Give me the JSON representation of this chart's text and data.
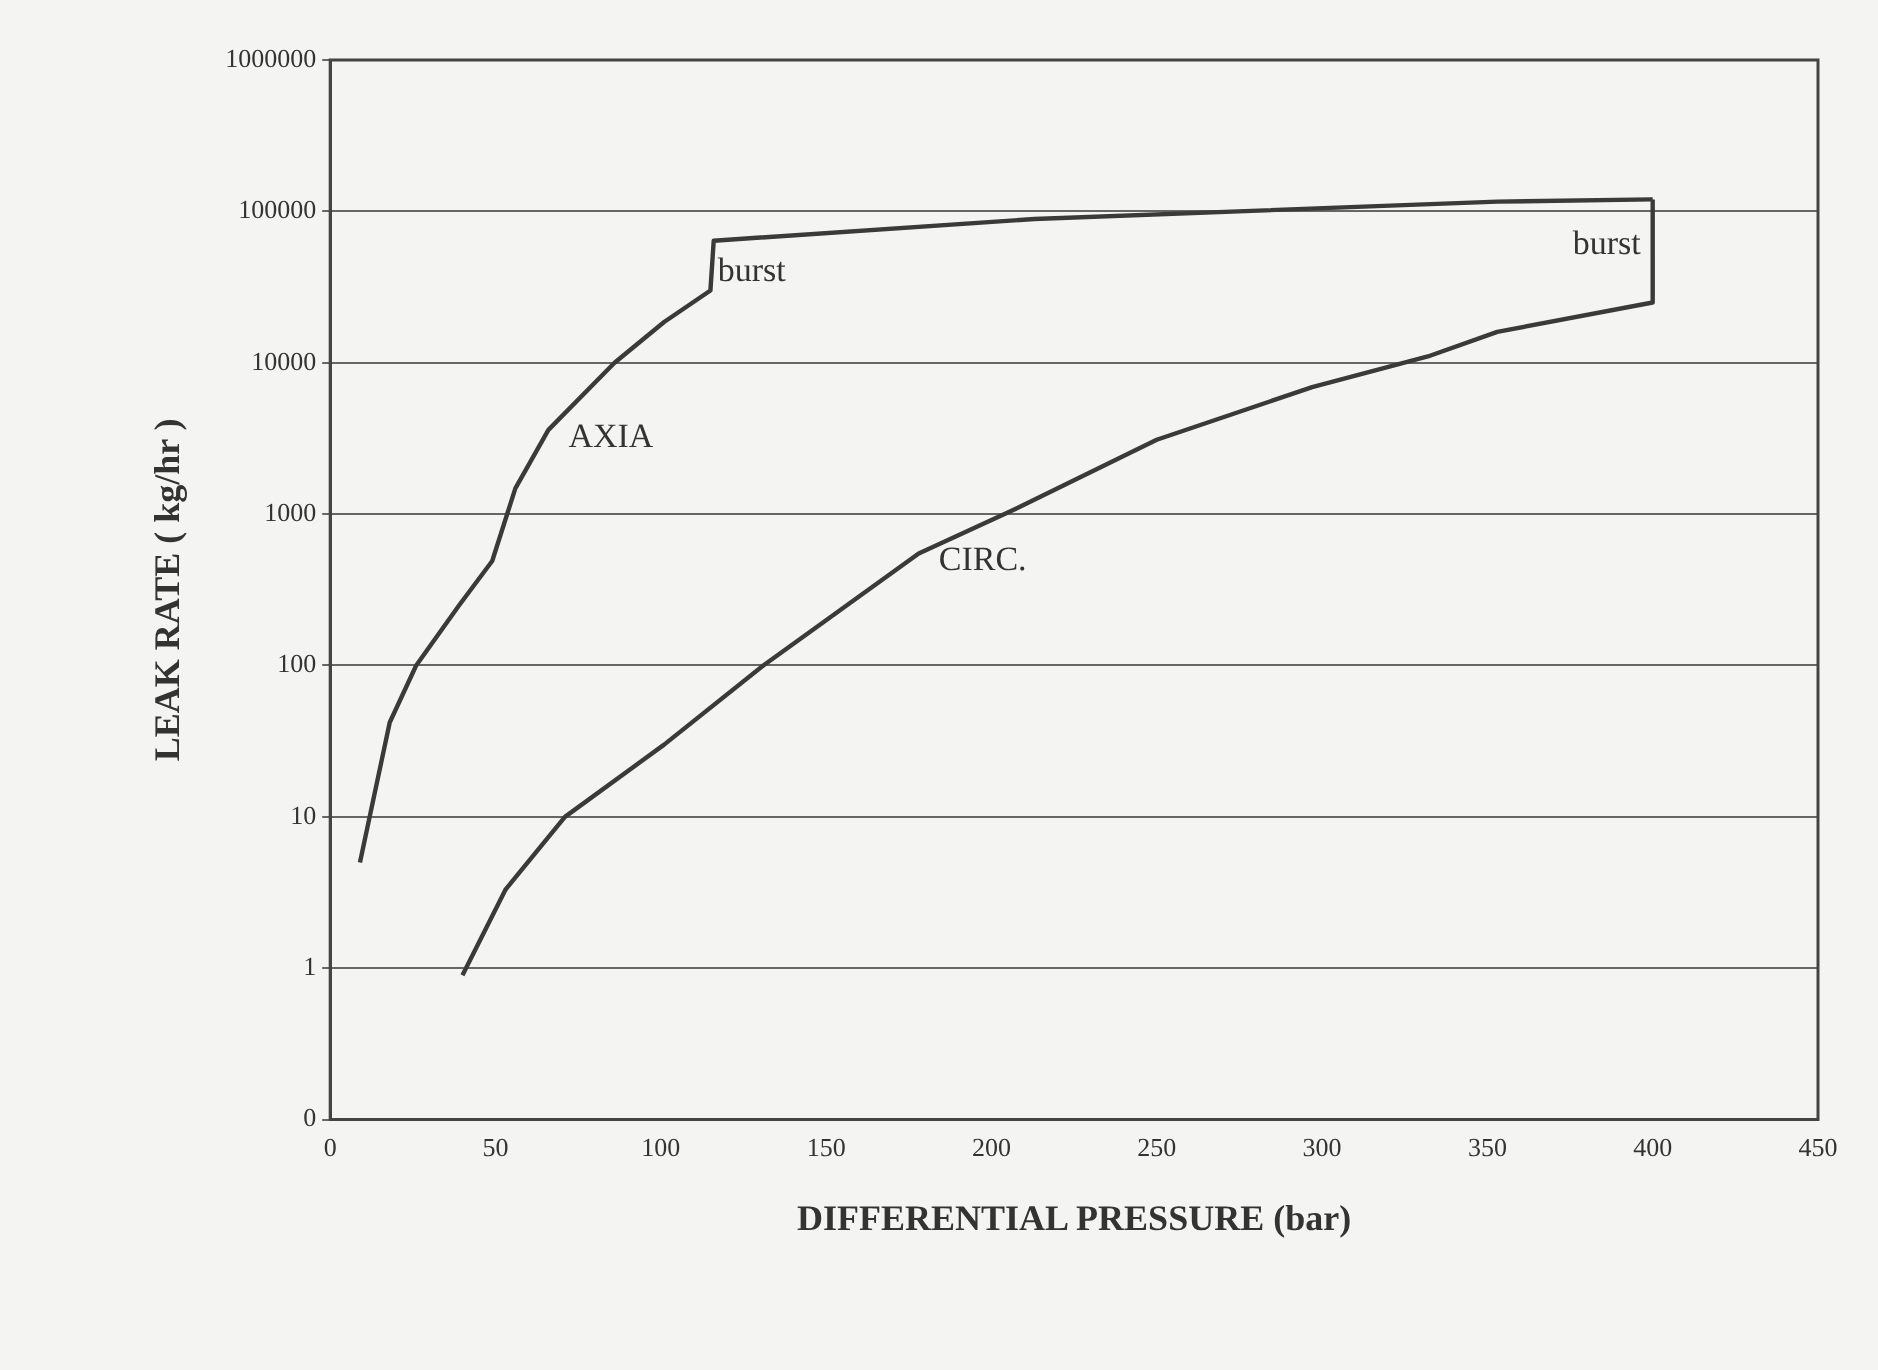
{
  "chart_data": {
    "type": "line",
    "xlabel": "DIFFERENTIAL PRESSURE (bar)",
    "ylabel": "LEAK RATE ( kg/hr )",
    "log": "y",
    "grid": "y",
    "legend": false,
    "marker": "none",
    "line_style": "solid",
    "xlim": [
      0,
      450
    ],
    "xticks": [
      0,
      50,
      100,
      150,
      200,
      250,
      300,
      350,
      400,
      450
    ],
    "ylim": [
      0.1,
      1000000
    ],
    "yticks": [
      {
        "value": 0.1,
        "label": "0"
      },
      1,
      10,
      100,
      1000,
      10000,
      100000,
      1000000
    ],
    "series": [
      {
        "name": "AXIA",
        "color": "#3a3a3a",
        "x": [
          9,
          18,
          26,
          39,
          49,
          56,
          66,
          86,
          101,
          115,
          116,
          213,
          353,
          400
        ],
        "values": [
          5,
          42,
          100,
          250,
          490,
          1480,
          3600,
          10000,
          18600,
          30000,
          64000,
          89000,
          116000,
          120000
        ]
      },
      {
        "name": "CIRC.",
        "color": "#3a3a3a",
        "x": [
          40,
          53,
          71,
          101,
          131,
          178,
          208,
          250,
          297,
          332,
          353,
          400,
          400
        ],
        "values": [
          0.9,
          3.3,
          10,
          30,
          100,
          550,
          1100,
          3100,
          6900,
          11000,
          16000,
          25000,
          120000
        ]
      }
    ],
    "annotations": [
      {
        "text": "burst",
        "x": 116,
        "y": 40000
      },
      {
        "text": "burst",
        "x": 400,
        "y": 60000
      }
    ]
  }
}
